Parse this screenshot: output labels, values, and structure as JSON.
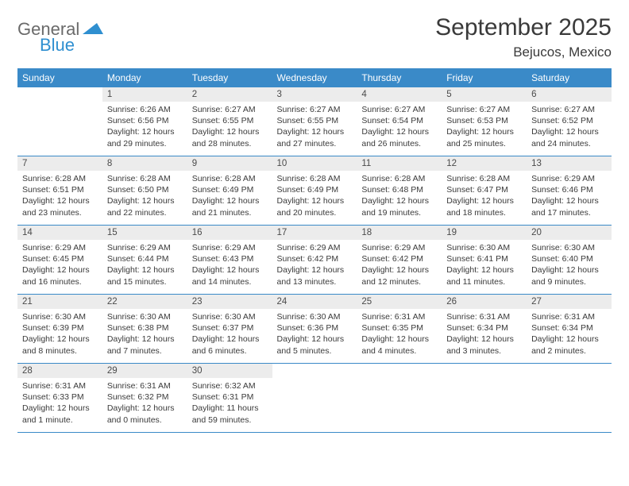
{
  "logo": {
    "line1": "General",
    "line2": "Blue"
  },
  "title": "September 2025",
  "location": "Bejucos, Mexico",
  "colors": {
    "header_bg": "#3a8ac8",
    "header_fg": "#ffffff",
    "daynum_bg": "#ececec",
    "text": "#3a3a3a",
    "row_border": "#3a8ac8",
    "logo_general": "#6a6a6a",
    "logo_blue": "#2f8fd0",
    "logo_icon_fill": "#2f8fd0"
  },
  "weekdays": [
    "Sunday",
    "Monday",
    "Tuesday",
    "Wednesday",
    "Thursday",
    "Friday",
    "Saturday"
  ],
  "weeks": [
    [
      {
        "n": "",
        "sr": "",
        "ss": "",
        "dl": ""
      },
      {
        "n": "1",
        "sr": "6:26 AM",
        "ss": "6:56 PM",
        "dl": "12 hours and 29 minutes."
      },
      {
        "n": "2",
        "sr": "6:27 AM",
        "ss": "6:55 PM",
        "dl": "12 hours and 28 minutes."
      },
      {
        "n": "3",
        "sr": "6:27 AM",
        "ss": "6:55 PM",
        "dl": "12 hours and 27 minutes."
      },
      {
        "n": "4",
        "sr": "6:27 AM",
        "ss": "6:54 PM",
        "dl": "12 hours and 26 minutes."
      },
      {
        "n": "5",
        "sr": "6:27 AM",
        "ss": "6:53 PM",
        "dl": "12 hours and 25 minutes."
      },
      {
        "n": "6",
        "sr": "6:27 AM",
        "ss": "6:52 PM",
        "dl": "12 hours and 24 minutes."
      }
    ],
    [
      {
        "n": "7",
        "sr": "6:28 AM",
        "ss": "6:51 PM",
        "dl": "12 hours and 23 minutes."
      },
      {
        "n": "8",
        "sr": "6:28 AM",
        "ss": "6:50 PM",
        "dl": "12 hours and 22 minutes."
      },
      {
        "n": "9",
        "sr": "6:28 AM",
        "ss": "6:49 PM",
        "dl": "12 hours and 21 minutes."
      },
      {
        "n": "10",
        "sr": "6:28 AM",
        "ss": "6:49 PM",
        "dl": "12 hours and 20 minutes."
      },
      {
        "n": "11",
        "sr": "6:28 AM",
        "ss": "6:48 PM",
        "dl": "12 hours and 19 minutes."
      },
      {
        "n": "12",
        "sr": "6:28 AM",
        "ss": "6:47 PM",
        "dl": "12 hours and 18 minutes."
      },
      {
        "n": "13",
        "sr": "6:29 AM",
        "ss": "6:46 PM",
        "dl": "12 hours and 17 minutes."
      }
    ],
    [
      {
        "n": "14",
        "sr": "6:29 AM",
        "ss": "6:45 PM",
        "dl": "12 hours and 16 minutes."
      },
      {
        "n": "15",
        "sr": "6:29 AM",
        "ss": "6:44 PM",
        "dl": "12 hours and 15 minutes."
      },
      {
        "n": "16",
        "sr": "6:29 AM",
        "ss": "6:43 PM",
        "dl": "12 hours and 14 minutes."
      },
      {
        "n": "17",
        "sr": "6:29 AM",
        "ss": "6:42 PM",
        "dl": "12 hours and 13 minutes."
      },
      {
        "n": "18",
        "sr": "6:29 AM",
        "ss": "6:42 PM",
        "dl": "12 hours and 12 minutes."
      },
      {
        "n": "19",
        "sr": "6:30 AM",
        "ss": "6:41 PM",
        "dl": "12 hours and 11 minutes."
      },
      {
        "n": "20",
        "sr": "6:30 AM",
        "ss": "6:40 PM",
        "dl": "12 hours and 9 minutes."
      }
    ],
    [
      {
        "n": "21",
        "sr": "6:30 AM",
        "ss": "6:39 PM",
        "dl": "12 hours and 8 minutes."
      },
      {
        "n": "22",
        "sr": "6:30 AM",
        "ss": "6:38 PM",
        "dl": "12 hours and 7 minutes."
      },
      {
        "n": "23",
        "sr": "6:30 AM",
        "ss": "6:37 PM",
        "dl": "12 hours and 6 minutes."
      },
      {
        "n": "24",
        "sr": "6:30 AM",
        "ss": "6:36 PM",
        "dl": "12 hours and 5 minutes."
      },
      {
        "n": "25",
        "sr": "6:31 AM",
        "ss": "6:35 PM",
        "dl": "12 hours and 4 minutes."
      },
      {
        "n": "26",
        "sr": "6:31 AM",
        "ss": "6:34 PM",
        "dl": "12 hours and 3 minutes."
      },
      {
        "n": "27",
        "sr": "6:31 AM",
        "ss": "6:34 PM",
        "dl": "12 hours and 2 minutes."
      }
    ],
    [
      {
        "n": "28",
        "sr": "6:31 AM",
        "ss": "6:33 PM",
        "dl": "12 hours and 1 minute."
      },
      {
        "n": "29",
        "sr": "6:31 AM",
        "ss": "6:32 PM",
        "dl": "12 hours and 0 minutes."
      },
      {
        "n": "30",
        "sr": "6:32 AM",
        "ss": "6:31 PM",
        "dl": "11 hours and 59 minutes."
      },
      {
        "n": "",
        "sr": "",
        "ss": "",
        "dl": ""
      },
      {
        "n": "",
        "sr": "",
        "ss": "",
        "dl": ""
      },
      {
        "n": "",
        "sr": "",
        "ss": "",
        "dl": ""
      },
      {
        "n": "",
        "sr": "",
        "ss": "",
        "dl": ""
      }
    ]
  ],
  "labels": {
    "sunrise": "Sunrise: ",
    "sunset": "Sunset: ",
    "daylight": "Daylight: "
  }
}
